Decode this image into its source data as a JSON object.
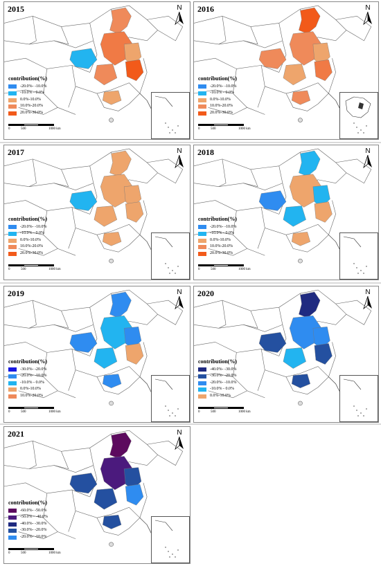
{
  "legend_title": "contribution(%)",
  "scale_labels": [
    "0",
    "500",
    "1000 km"
  ],
  "north_label": "N",
  "colors": {
    "neg60_50": "#5c0a5e",
    "neg50_40": "#4b1a7d",
    "neg40_30": "#1f2a80",
    "neg30_20_dark": "#2450a0",
    "neg30_20_blue": "#1818e0",
    "neg20_10": "#2f8cf0",
    "neg10_0": "#22b4f0",
    "pos0_10": "#eea56c",
    "pos10_20": "#ef8a5a",
    "pos20_30": "#f25a1a"
  },
  "panels": [
    {
      "year": "2015",
      "legend": [
        {
          "label": "-20.0%- -10.0%",
          "color": "#2f8cf0"
        },
        {
          "label": "-10.0% - 0.0%",
          "color": "#22b4f0"
        },
        {
          "label": "0.0%-10.0%",
          "color": "#eea56c"
        },
        {
          "label": "10.0%-20.0%",
          "color": "#ef8a5a"
        },
        {
          "label": "20.0%-30.0%",
          "color": "#f25a1a"
        }
      ],
      "region_colors": [
        "#ef8a5a",
        "#f07a45",
        "#eea56c",
        "#22b4f0",
        "#f25a1a",
        "#ef8a5a",
        "#eea56c"
      ]
    },
    {
      "year": "2016",
      "legend": [
        {
          "label": "-20.0%- -10.0%",
          "color": "#2f8cf0"
        },
        {
          "label": "-10.0% - 0.0%",
          "color": "#22b4f0"
        },
        {
          "label": "0.0%-10.0%",
          "color": "#eea56c"
        },
        {
          "label": "10.0%-20.0%",
          "color": "#ef8a5a"
        },
        {
          "label": "20.0%-30.0%",
          "color": "#f25a1a"
        }
      ],
      "region_colors": [
        "#f25a1a",
        "#ef8a5a",
        "#eea56c",
        "#ef8a5a",
        "#f07a45",
        "#eea56c",
        "#ef8a5a"
      ]
    },
    {
      "year": "2017",
      "legend": [
        {
          "label": "-20.0%- -10.0%",
          "color": "#2f8cf0"
        },
        {
          "label": "-10.0% - 0.0%",
          "color": "#22b4f0"
        },
        {
          "label": "0.0%-10.0%",
          "color": "#eea56c"
        },
        {
          "label": "10.0%-20.0%",
          "color": "#ef8a5a"
        },
        {
          "label": "20.0%-30.0%",
          "color": "#f25a1a"
        }
      ],
      "region_colors": [
        "#eea56c",
        "#eea56c",
        "#eea56c",
        "#22b4f0",
        "#eea56c",
        "#eea56c",
        "#eea56c"
      ]
    },
    {
      "year": "2018",
      "legend": [
        {
          "label": "-20.0%- -10.0%",
          "color": "#2f8cf0"
        },
        {
          "label": "-10.0% - 0.0%",
          "color": "#22b4f0"
        },
        {
          "label": "0.0%-10.0%",
          "color": "#eea56c"
        },
        {
          "label": "10.0%-20.0%",
          "color": "#ef8a5a"
        },
        {
          "label": "20.0%-30.0%",
          "color": "#f25a1a"
        }
      ],
      "region_colors": [
        "#22b4f0",
        "#eea56c",
        "#22b4f0",
        "#2f8cf0",
        "#eea56c",
        "#22b4f0",
        "#eea56c"
      ]
    },
    {
      "year": "2019",
      "legend": [
        {
          "label": "-30.0%- -20.0%",
          "color": "#1818e0"
        },
        {
          "label": "-20.0%- -10.0%",
          "color": "#2f8cf0"
        },
        {
          "label": "-10.0% - 0.0%",
          "color": "#22b4f0"
        },
        {
          "label": "0.0%-10.0%",
          "color": "#eea56c"
        },
        {
          "label": "10.0%-20.0%",
          "color": "#ef8a5a"
        }
      ],
      "region_colors": [
        "#2f8cf0",
        "#22b4f0",
        "#2f8cf0",
        "#2f8cf0",
        "#eea56c",
        "#22b4f0",
        "#2f8cf0"
      ]
    },
    {
      "year": "2020",
      "legend": [
        {
          "label": "-40.0%- -30.0%",
          "color": "#1f2a80"
        },
        {
          "label": "-30.0%- -20.0%",
          "color": "#2450a0"
        },
        {
          "label": "-20.0%- -10.0%",
          "color": "#2f8cf0"
        },
        {
          "label": "-10.0% - 0.0%",
          "color": "#22b4f0"
        },
        {
          "label": "0.0%-10.0%",
          "color": "#eea56c"
        }
      ],
      "region_colors": [
        "#1f2a80",
        "#2f8cf0",
        "#2f8cf0",
        "#2450a0",
        "#2450a0",
        "#22b4f0",
        "#2450a0"
      ]
    },
    {
      "year": "2021",
      "legend": [
        {
          "label": "-60.0%- -50.0%",
          "color": "#5c0a5e"
        },
        {
          "label": "-50.0% - -40.0%",
          "color": "#4b1a7d"
        },
        {
          "label": "-40.0%- -30.0%",
          "color": "#1f2a80"
        },
        {
          "label": "-30.0%- -20.0%",
          "color": "#2450a0"
        },
        {
          "label": "-20.0%- -10.0%",
          "color": "#2f8cf0"
        }
      ],
      "region_colors": [
        "#5c0a5e",
        "#4b1a7d",
        "#2450a0",
        "#2450a0",
        "#2f8cf0",
        "#2450a0",
        "#2450a0"
      ]
    }
  ]
}
